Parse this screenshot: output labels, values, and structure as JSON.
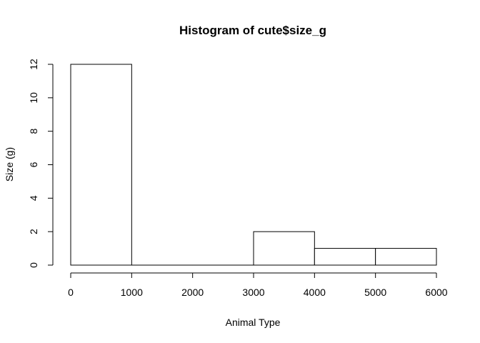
{
  "chart_data": {
    "type": "bar",
    "title": "Histogram of cute$size_g",
    "xlabel": "Animal Type",
    "ylabel": "Size (g)",
    "bins": [
      {
        "start": 0,
        "end": 1000,
        "value": 12
      },
      {
        "start": 1000,
        "end": 2000,
        "value": 0
      },
      {
        "start": 2000,
        "end": 3000,
        "value": 0
      },
      {
        "start": 3000,
        "end": 4000,
        "value": 2
      },
      {
        "start": 4000,
        "end": 5000,
        "value": 1
      },
      {
        "start": 5000,
        "end": 6000,
        "value": 1
      }
    ],
    "xlim": [
      0,
      6000
    ],
    "ylim": [
      0,
      12
    ],
    "x_ticks": [
      "0",
      "1000",
      "2000",
      "3000",
      "4000",
      "5000",
      "6000"
    ],
    "y_ticks": [
      "0",
      "2",
      "4",
      "6",
      "8",
      "10",
      "12"
    ],
    "grid": false,
    "legend": "none"
  }
}
